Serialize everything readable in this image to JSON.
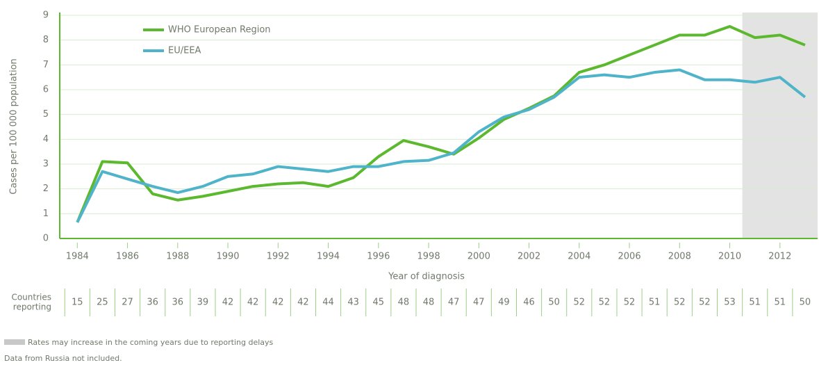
{
  "chart_data": {
    "type": "line",
    "y_label": "Cases per 100 000 population",
    "x_label": "Year of diagnosis",
    "x": [
      1984,
      1985,
      1986,
      1987,
      1988,
      1989,
      1990,
      1991,
      1992,
      1993,
      1994,
      1995,
      1996,
      1997,
      1998,
      1999,
      2000,
      2001,
      2002,
      2003,
      2004,
      2005,
      2006,
      2007,
      2008,
      2009,
      2010,
      2011,
      2012,
      2013
    ],
    "series": [
      {
        "name": "WHO European Region",
        "color": "#5cb82e",
        "values": [
          0.65,
          3.1,
          3.05,
          1.8,
          1.55,
          1.7,
          1.9,
          2.1,
          2.2,
          2.25,
          2.1,
          2.45,
          3.3,
          3.95,
          3.7,
          3.4,
          4.05,
          4.8,
          5.25,
          5.75,
          6.7,
          7.0,
          7.4,
          7.8,
          8.2,
          8.2,
          8.55,
          8.1,
          8.2,
          7.8
        ]
      },
      {
        "name": "EU/EEA",
        "color": "#4fb3c9",
        "values": [
          0.65,
          2.7,
          2.4,
          2.1,
          1.85,
          2.1,
          2.5,
          2.6,
          2.9,
          2.8,
          2.7,
          2.9,
          2.9,
          3.1,
          3.15,
          3.45,
          4.3,
          4.9,
          5.2,
          5.7,
          6.5,
          6.6,
          6.5,
          6.7,
          6.8,
          6.4,
          6.4,
          6.3,
          6.5,
          5.7
        ]
      }
    ],
    "xlim": [
      1983.3,
      2013.5
    ],
    "xticks": [
      1984,
      1986,
      1988,
      1990,
      1992,
      1994,
      1996,
      1998,
      2000,
      2002,
      2004,
      2006,
      2008,
      2010,
      2012
    ],
    "ylim": [
      0,
      9
    ],
    "yticks": [
      0,
      1,
      2,
      3,
      4,
      5,
      6,
      7,
      8,
      9
    ],
    "grid": true,
    "legend": "top-left",
    "shade": [
      2010.5,
      2013.5
    ],
    "countries_reporting": {
      "label": [
        "Countries",
        "reporting"
      ],
      "values": [
        15,
        25,
        27,
        36,
        36,
        39,
        42,
        42,
        42,
        42,
        44,
        43,
        45,
        48,
        48,
        47,
        47,
        49,
        46,
        50,
        52,
        52,
        52,
        51,
        52,
        52,
        53,
        51,
        51,
        50
      ]
    },
    "footnotes": [
      "Rates may increase in the coming years due to reporting delays",
      "Data from Russia not included."
    ]
  }
}
